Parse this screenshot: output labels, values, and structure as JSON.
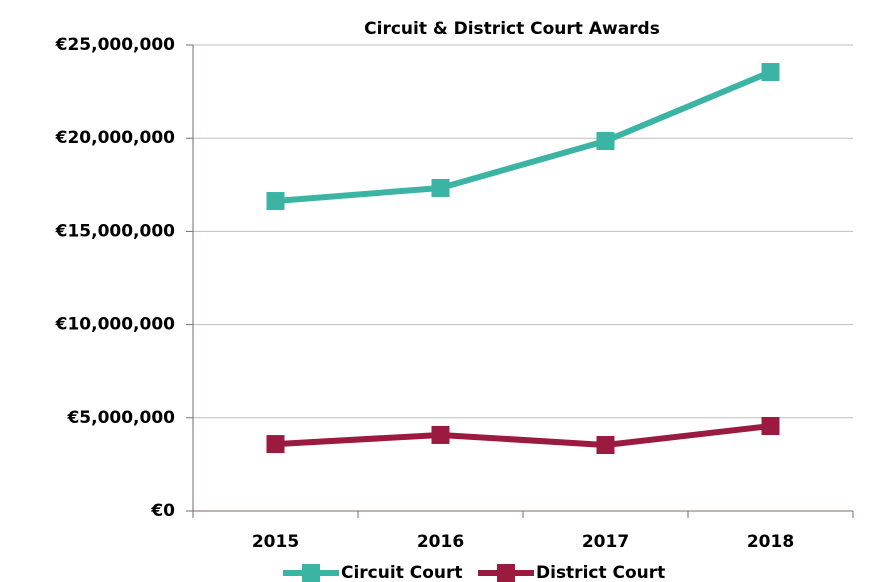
{
  "chart_data": {
    "type": "line",
    "title": "Circuit & District Court Awards",
    "categories": [
      "2015",
      "2016",
      "2017",
      "2018"
    ],
    "series": [
      {
        "name": "Circuit Court",
        "color": "#3cb4a4",
        "values": [
          16630000,
          17330000,
          19850000,
          23550000
        ]
      },
      {
        "name": "District Court",
        "color": "#9b1b40",
        "values": [
          3590000,
          4080000,
          3540000,
          4560000
        ]
      }
    ],
    "ylim": [
      0,
      25000000
    ],
    "yticks": [
      {
        "value": 0,
        "label": "€0"
      },
      {
        "value": 5000000,
        "label": "€5,000,000"
      },
      {
        "value": 10000000,
        "label": "€10,000,000"
      },
      {
        "value": 15000000,
        "label": "€15,000,000"
      },
      {
        "value": 20000000,
        "label": "€20,000,000"
      },
      {
        "value": 25000000,
        "label": "€25,000,000"
      }
    ],
    "grid": true,
    "legend": "bottom"
  }
}
